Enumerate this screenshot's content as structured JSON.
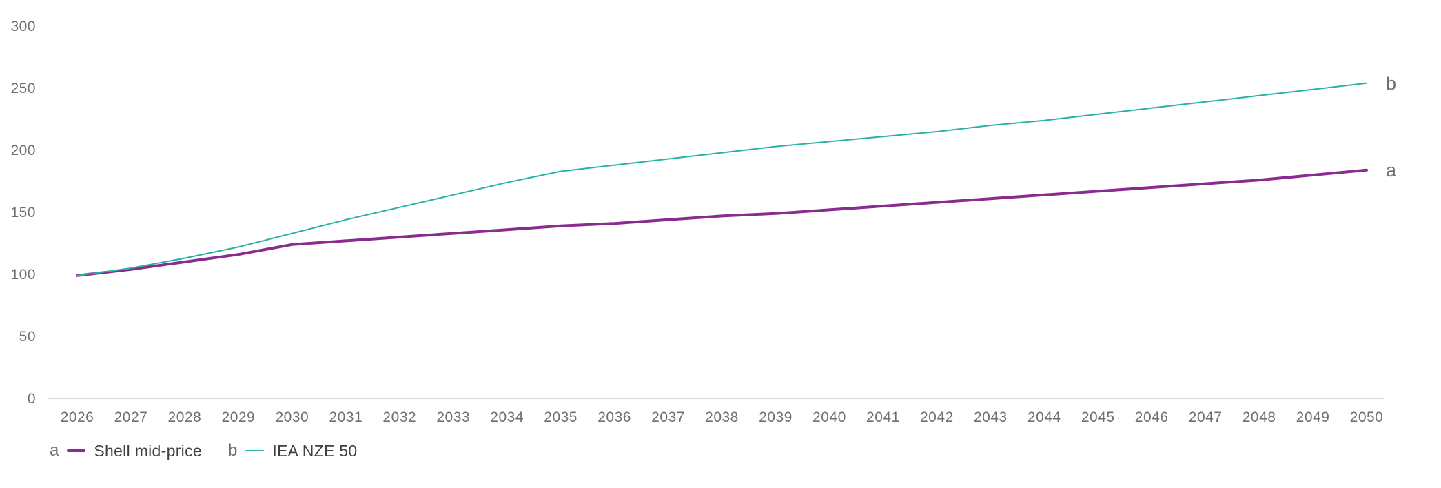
{
  "chart_data": {
    "type": "line",
    "title": "",
    "xlabel": "",
    "ylabel": "",
    "x": [
      2026,
      2027,
      2028,
      2029,
      2030,
      2031,
      2032,
      2033,
      2034,
      2035,
      2036,
      2037,
      2038,
      2039,
      2040,
      2041,
      2042,
      2043,
      2044,
      2045,
      2046,
      2047,
      2048,
      2049,
      2050
    ],
    "series": [
      {
        "name": "Shell mid-price",
        "letter": "a",
        "color": "#8a2c8f",
        "width": 4,
        "values": [
          99,
          104,
          110,
          116,
          124,
          127,
          130,
          133,
          136,
          139,
          141,
          144,
          147,
          149,
          152,
          155,
          158,
          161,
          164,
          167,
          170,
          173,
          176,
          180,
          184
        ]
      },
      {
        "name": "IEA NZE 50",
        "letter": "b",
        "color": "#29b1a5",
        "width": 2,
        "values": [
          99,
          105,
          113,
          122,
          133,
          144,
          154,
          164,
          174,
          183,
          188,
          193,
          198,
          203,
          207,
          211,
          215,
          220,
          224,
          229,
          234,
          239,
          244,
          249,
          254
        ]
      }
    ],
    "ylim": [
      0,
      300
    ],
    "yticks": [
      0,
      50,
      100,
      150,
      200,
      250,
      300
    ],
    "grid": false,
    "axis_color": "#c9c9c9",
    "tick_color": "#6f6f6f",
    "legend_position": "bottom-left"
  },
  "legend": {
    "items": [
      {
        "letter": "a",
        "label": "Shell mid-price"
      },
      {
        "letter": "b",
        "label": "IEA NZE 50"
      }
    ]
  }
}
